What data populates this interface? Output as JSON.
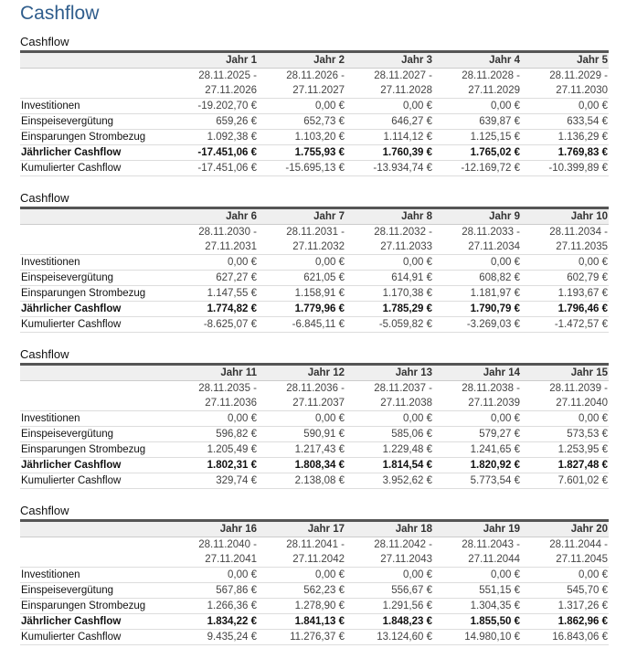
{
  "title": "Cashflow",
  "row_labels": [
    "Investitionen",
    "Einspeisevergütung",
    "Einsparungen Strombezug",
    "Jährlicher Cashflow",
    "Kumulierter Cashflow"
  ],
  "tables": [
    {
      "caption": "Cashflow",
      "years": [
        "Jahr 1",
        "Jahr 2",
        "Jahr 3",
        "Jahr 4",
        "Jahr 5"
      ],
      "date_from": [
        "28.11.2025 -",
        "28.11.2026 -",
        "28.11.2027 -",
        "28.11.2028 -",
        "28.11.2029 -"
      ],
      "date_to": [
        "27.11.2026",
        "27.11.2027",
        "27.11.2028",
        "27.11.2029",
        "27.11.2030"
      ],
      "rows": [
        [
          "-19.202,70 €",
          "0,00 €",
          "0,00 €",
          "0,00 €",
          "0,00 €"
        ],
        [
          "659,26 €",
          "652,73 €",
          "646,27 €",
          "639,87 €",
          "633,54 €"
        ],
        [
          "1.092,38 €",
          "1.103,20 €",
          "1.114,12 €",
          "1.125,15 €",
          "1.136,29 €"
        ],
        [
          "-17.451,06 €",
          "1.755,93 €",
          "1.760,39 €",
          "1.765,02 €",
          "1.769,83 €"
        ],
        [
          "-17.451,06 €",
          "-15.695,13 €",
          "-13.934,74 €",
          "-12.169,72 €",
          "-10.399,89 €"
        ]
      ]
    },
    {
      "caption": "Cashflow",
      "years": [
        "Jahr 6",
        "Jahr 7",
        "Jahr 8",
        "Jahr 9",
        "Jahr 10"
      ],
      "date_from": [
        "28.11.2030 -",
        "28.11.2031 -",
        "28.11.2032 -",
        "28.11.2033 -",
        "28.11.2034 -"
      ],
      "date_to": [
        "27.11.2031",
        "27.11.2032",
        "27.11.2033",
        "27.11.2034",
        "27.11.2035"
      ],
      "rows": [
        [
          "0,00 €",
          "0,00 €",
          "0,00 €",
          "0,00 €",
          "0,00 €"
        ],
        [
          "627,27 €",
          "621,05 €",
          "614,91 €",
          "608,82 €",
          "602,79 €"
        ],
        [
          "1.147,55 €",
          "1.158,91 €",
          "1.170,38 €",
          "1.181,97 €",
          "1.193,67 €"
        ],
        [
          "1.774,82 €",
          "1.779,96 €",
          "1.785,29 €",
          "1.790,79 €",
          "1.796,46 €"
        ],
        [
          "-8.625,07 €",
          "-6.845,11 €",
          "-5.059,82 €",
          "-3.269,03 €",
          "-1.472,57 €"
        ]
      ]
    },
    {
      "caption": "Cashflow",
      "years": [
        "Jahr 11",
        "Jahr 12",
        "Jahr 13",
        "Jahr 14",
        "Jahr 15"
      ],
      "date_from": [
        "28.11.2035 -",
        "28.11.2036 -",
        "28.11.2037 -",
        "28.11.2038 -",
        "28.11.2039 -"
      ],
      "date_to": [
        "27.11.2036",
        "27.11.2037",
        "27.11.2038",
        "27.11.2039",
        "27.11.2040"
      ],
      "rows": [
        [
          "0,00 €",
          "0,00 €",
          "0,00 €",
          "0,00 €",
          "0,00 €"
        ],
        [
          "596,82 €",
          "590,91 €",
          "585,06 €",
          "579,27 €",
          "573,53 €"
        ],
        [
          "1.205,49 €",
          "1.217,43 €",
          "1.229,48 €",
          "1.241,65 €",
          "1.253,95 €"
        ],
        [
          "1.802,31 €",
          "1.808,34 €",
          "1.814,54 €",
          "1.820,92 €",
          "1.827,48 €"
        ],
        [
          "329,74 €",
          "2.138,08 €",
          "3.952,62 €",
          "5.773,54 €",
          "7.601,02 €"
        ]
      ]
    },
    {
      "caption": "Cashflow",
      "years": [
        "Jahr 16",
        "Jahr 17",
        "Jahr 18",
        "Jahr 19",
        "Jahr 20"
      ],
      "date_from": [
        "28.11.2040 -",
        "28.11.2041 -",
        "28.11.2042 -",
        "28.11.2043 -",
        "28.11.2044 -"
      ],
      "date_to": [
        "27.11.2041",
        "27.11.2042",
        "27.11.2043",
        "27.11.2044",
        "27.11.2045"
      ],
      "rows": [
        [
          "0,00 €",
          "0,00 €",
          "0,00 €",
          "0,00 €",
          "0,00 €"
        ],
        [
          "567,86 €",
          "562,23 €",
          "556,67 €",
          "551,15 €",
          "545,70 €"
        ],
        [
          "1.266,36 €",
          "1.278,90 €",
          "1.291,56 €",
          "1.304,35 €",
          "1.317,26 €"
        ],
        [
          "1.834,22 €",
          "1.841,13 €",
          "1.848,23 €",
          "1.855,50 €",
          "1.862,96 €"
        ],
        [
          "9.435,24 €",
          "11.276,37 €",
          "13.124,60 €",
          "14.980,10 €",
          "16.843,06 €"
        ]
      ]
    }
  ]
}
